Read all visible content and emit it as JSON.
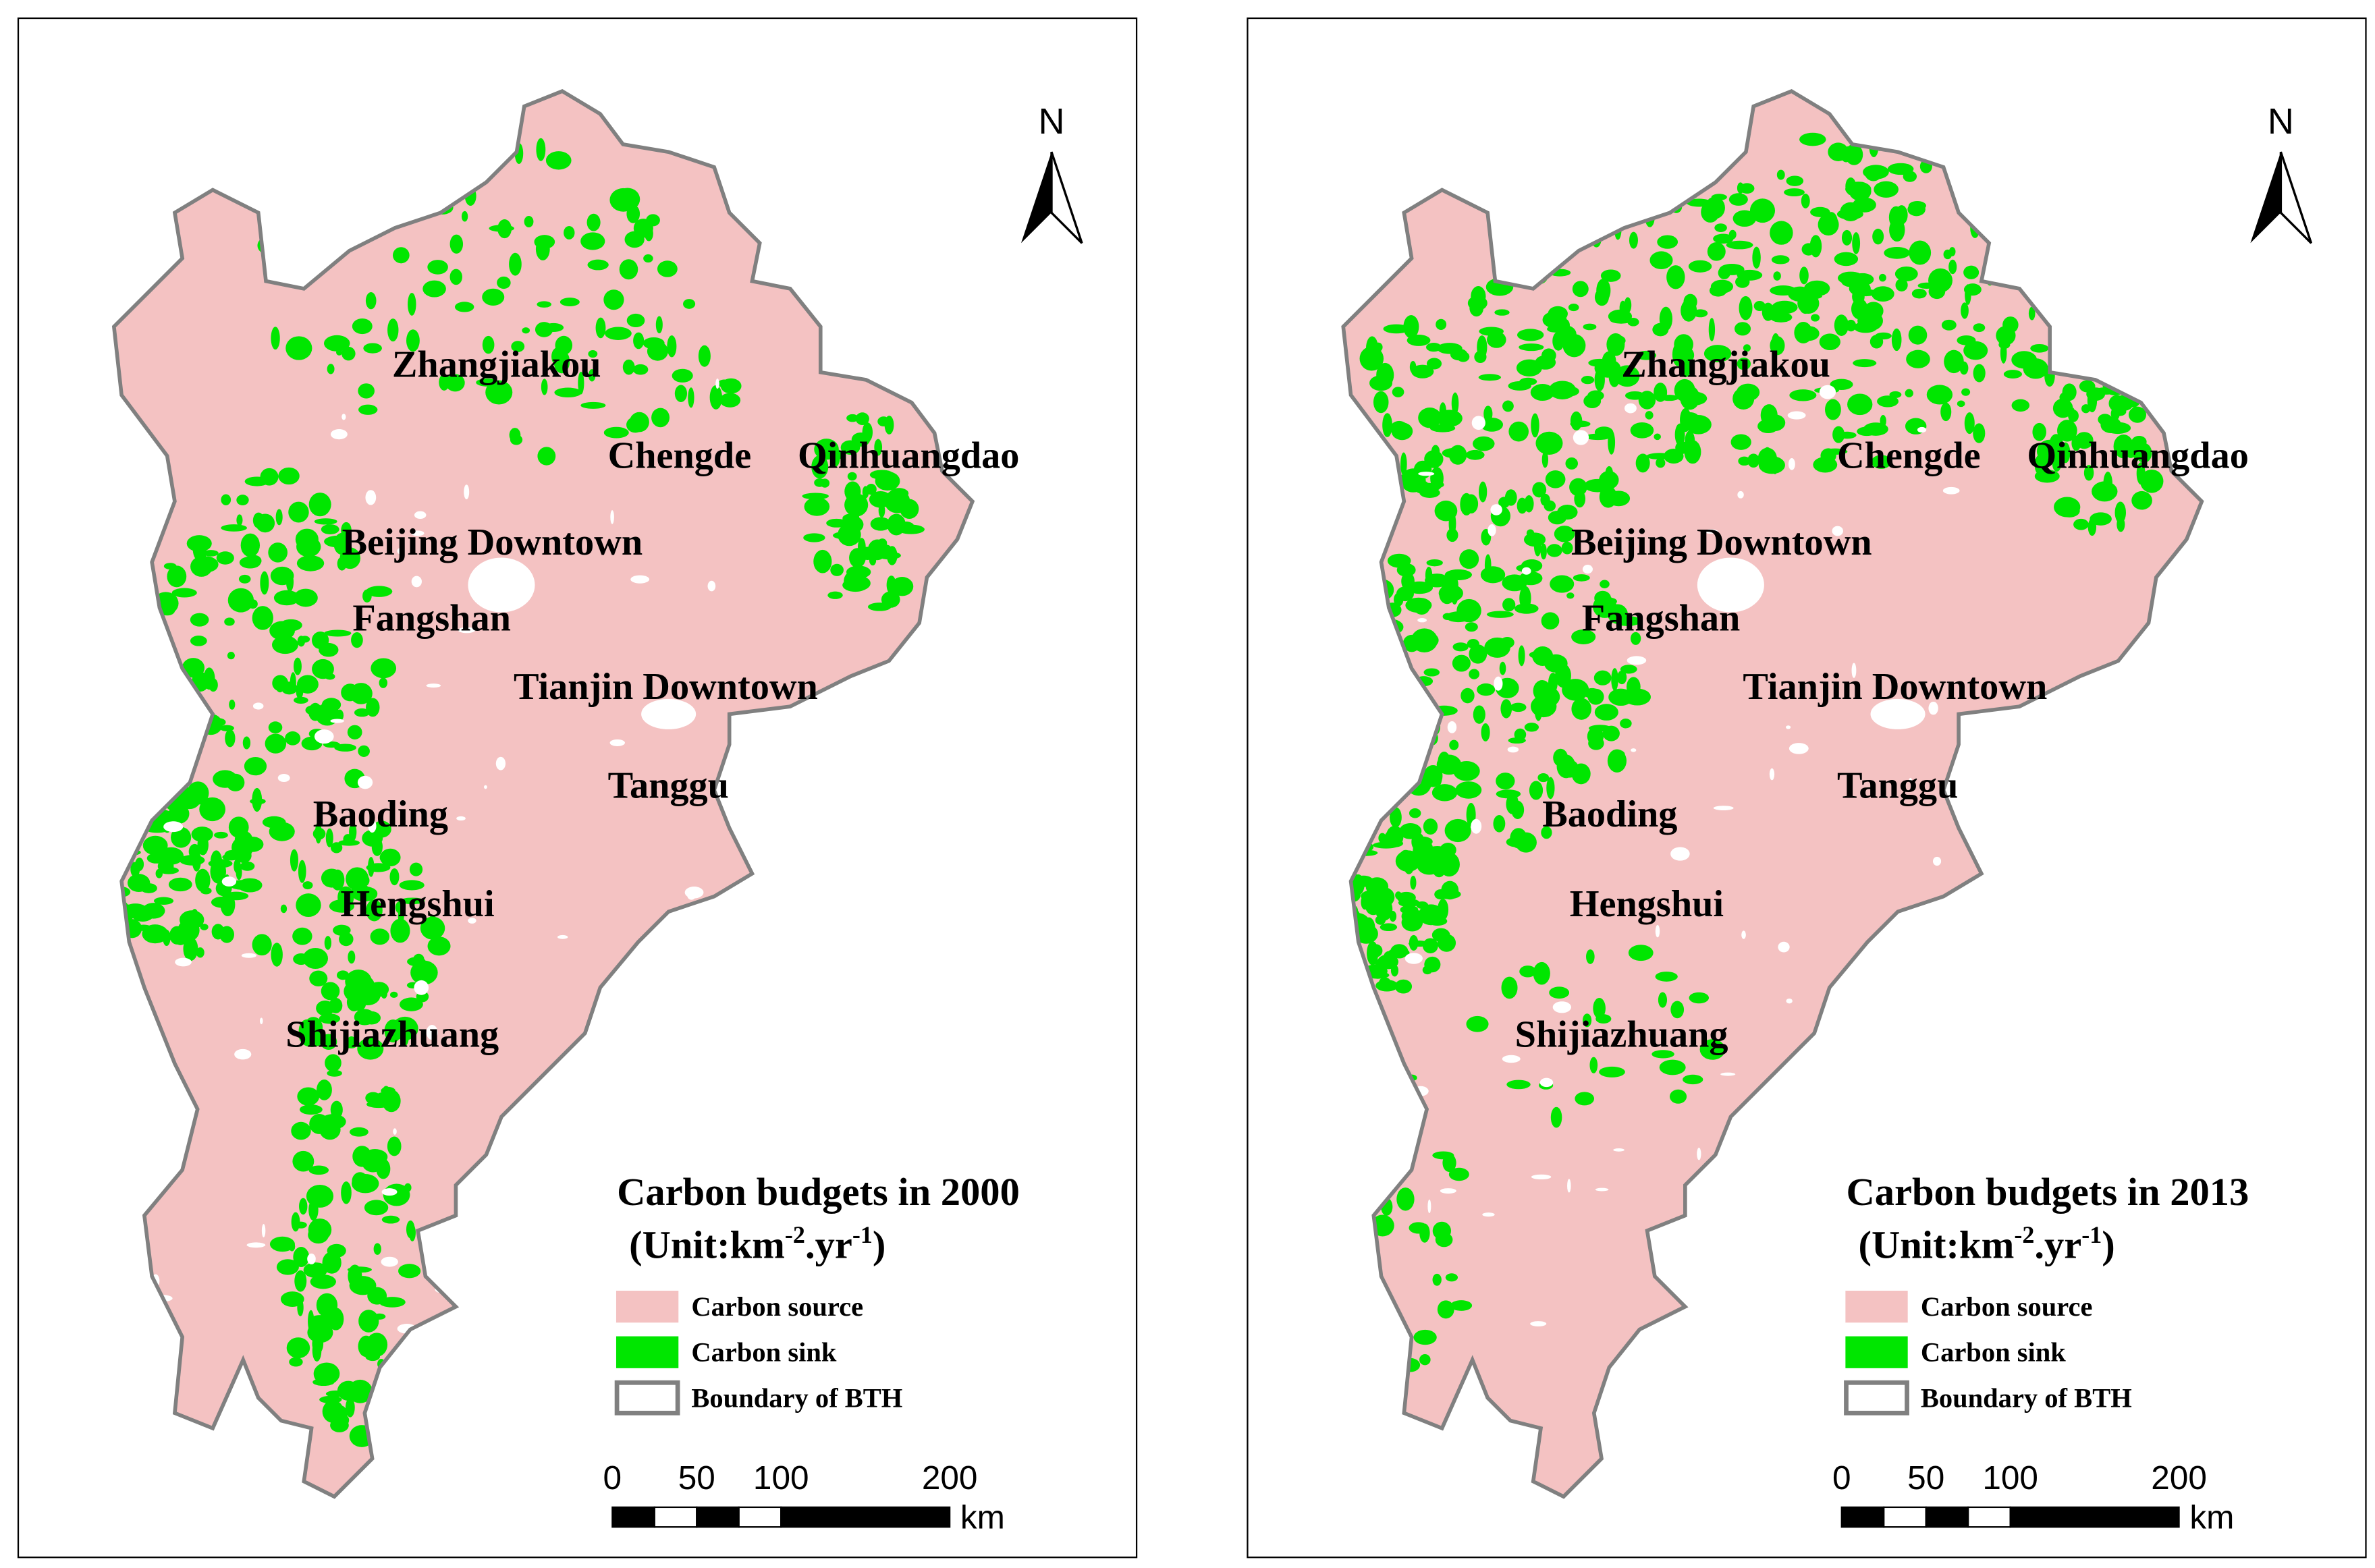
{
  "panels": [
    {
      "title": "Carbon budgets in 2000",
      "unit": {
        "prefix": "(Unit:km",
        "exp1": "-2",
        "middle": ".yr",
        "exp2": "-1",
        "suffix": ")"
      },
      "cities": [
        "Zhangjiakou",
        "Chengde",
        "Qinhuangdao",
        "Beijing Downtown",
        "Fangshan",
        "Tianjin Downtown",
        "Tanggu",
        "Baoding",
        "Hengshui",
        "Shijiazhuang"
      ],
      "legend": [
        "Carbon source",
        "Carbon sink",
        "Boundary of  BTH"
      ],
      "north": "N",
      "scale": {
        "ticks": [
          0,
          50,
          100,
          200
        ],
        "unit": "km"
      }
    },
    {
      "title": "Carbon budgets in 2013",
      "unit": {
        "prefix": "(Unit:km",
        "exp1": "-2",
        "middle": ".yr",
        "exp2": "-1",
        "suffix": ")"
      },
      "cities": [
        "Zhangjiakou",
        "Chengde",
        "Qinhuangdao",
        "Beijing Downtown",
        "Fangshan",
        "Tianjin Downtown",
        "Tanggu",
        "Baoding",
        "Hengshui",
        "Shijiazhuang"
      ],
      "legend": [
        "Carbon source",
        "Carbon sink",
        "Boundary of  BTH"
      ],
      "north": "N",
      "scale": {
        "ticks": [
          0,
          50,
          100,
          200
        ],
        "unit": "km"
      }
    }
  ]
}
